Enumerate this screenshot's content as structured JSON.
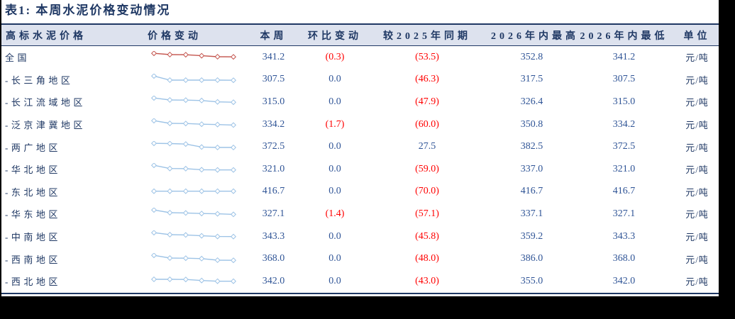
{
  "title": "表1: 本周水泥价格变动情况",
  "colors": {
    "navy": "#1f3864",
    "numBlue": "#2f5496",
    "red": "#ff0000",
    "headerBg": "#dde2ee",
    "sparkRed": "#c4554e",
    "sparkBlue": "#9dc3e6"
  },
  "table": {
    "headers": [
      "高标水泥价格",
      "价格变动",
      "本周",
      "环比变动",
      "较2025年同期",
      "2026年内最高",
      "2026年内最低",
      "单位"
    ],
    "rows": [
      {
        "label": "全国",
        "this_week": "341.2",
        "wow_change": "(0.3)",
        "vs_2025": "(53.5)",
        "high_2026": "352.8",
        "low_2026": "341.2",
        "unit": "元/吨",
        "spark": {
          "color": "#c4554e",
          "values": [
            100,
            82,
            80,
            66,
            52,
            50
          ]
        }
      },
      {
        "label": "-长三角地区",
        "this_week": "307.5",
        "wow_change": "0.0",
        "vs_2025": "(46.3)",
        "high_2026": "317.5",
        "low_2026": "307.5",
        "unit": "元/吨",
        "spark": {
          "color": "#9dc3e6",
          "values": [
            100,
            42,
            42,
            42,
            42,
            40
          ]
        }
      },
      {
        "label": "-长江流域地区",
        "this_week": "315.0",
        "wow_change": "0.0",
        "vs_2025": "(47.9)",
        "high_2026": "326.4",
        "low_2026": "315.0",
        "unit": "元/吨",
        "spark": {
          "color": "#9dc3e6",
          "values": [
            100,
            72,
            70,
            64,
            45,
            40
          ]
        }
      },
      {
        "label": "-泛京津冀地区",
        "this_week": "334.2",
        "wow_change": "(1.7)",
        "vs_2025": "(60.0)",
        "high_2026": "350.8",
        "low_2026": "334.2",
        "unit": "元/吨",
        "spark": {
          "color": "#9dc3e6",
          "values": [
            100,
            62,
            60,
            50,
            45,
            38
          ]
        }
      },
      {
        "label": "-两广地区",
        "this_week": "372.5",
        "wow_change": "0.0",
        "vs_2025": "27.5",
        "high_2026": "382.5",
        "low_2026": "372.5",
        "unit": "元/吨",
        "spark": {
          "color": "#9dc3e6",
          "values": [
            100,
            97,
            90,
            48,
            42,
            42
          ]
        }
      },
      {
        "label": "-华北地区",
        "this_week": "321.0",
        "wow_change": "0.0",
        "vs_2025": "(59.0)",
        "high_2026": "337.0",
        "low_2026": "321.0",
        "unit": "元/吨",
        "spark": {
          "color": "#9dc3e6",
          "values": [
            100,
            55,
            53,
            38,
            35,
            35
          ]
        }
      },
      {
        "label": "-东北地区",
        "this_week": "416.7",
        "wow_change": "0.0",
        "vs_2025": "(70.0)",
        "high_2026": "416.7",
        "low_2026": "416.7",
        "unit": "元/吨",
        "spark": {
          "color": "#9dc3e6",
          "values": [
            55,
            55,
            55,
            55,
            55,
            55
          ]
        }
      },
      {
        "label": "-华东地区",
        "this_week": "327.1",
        "wow_change": "(1.4)",
        "vs_2025": "(57.1)",
        "high_2026": "337.1",
        "low_2026": "327.1",
        "unit": "元/吨",
        "spark": {
          "color": "#9dc3e6",
          "values": [
            100,
            62,
            58,
            50,
            46,
            38
          ]
        }
      },
      {
        "label": "-中南地区",
        "this_week": "343.3",
        "wow_change": "0.0",
        "vs_2025": "(45.8)",
        "high_2026": "359.2",
        "low_2026": "343.3",
        "unit": "元/吨",
        "spark": {
          "color": "#9dc3e6",
          "values": [
            100,
            72,
            68,
            56,
            46,
            45
          ]
        }
      },
      {
        "label": "-西南地区",
        "this_week": "368.0",
        "wow_change": "0.0",
        "vs_2025": "(48.0)",
        "high_2026": "386.0",
        "low_2026": "368.0",
        "unit": "元/吨",
        "spark": {
          "color": "#9dc3e6",
          "values": [
            100,
            62,
            60,
            54,
            32,
            30
          ]
        }
      },
      {
        "label": "-西北地区",
        "this_week": "342.0",
        "wow_change": "0.0",
        "vs_2025": "(43.0)",
        "high_2026": "355.0",
        "low_2026": "342.0",
        "unit": "元/吨",
        "spark": {
          "color": "#9dc3e6",
          "values": [
            72,
            72,
            70,
            55,
            45,
            45
          ]
        }
      }
    ]
  }
}
